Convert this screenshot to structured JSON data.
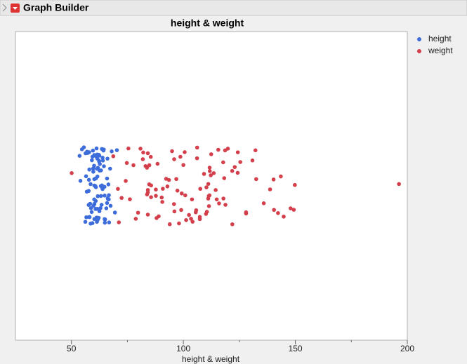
{
  "header": {
    "title": "Graph Builder"
  },
  "chart_data": {
    "type": "jitter",
    "title": "height & weight",
    "x_label": "height & weight",
    "xlim": [
      25,
      200
    ],
    "xticks": [
      50,
      100,
      150,
      200
    ],
    "xminor_ticks": [
      75,
      125,
      175
    ],
    "grid": false,
    "legend": "right",
    "series": [
      {
        "name": "height",
        "color": "#3d6cdb",
        "values": [
          60,
          62,
          58,
          64,
          66,
          61,
          63,
          57,
          59,
          65,
          67,
          62,
          60,
          64,
          56,
          58,
          61,
          63,
          65,
          59,
          62,
          66,
          60,
          57,
          64,
          68,
          61,
          63,
          59,
          62,
          55,
          60,
          65,
          58,
          63,
          61,
          67,
          64,
          62,
          59,
          56,
          60,
          66,
          63,
          58,
          61,
          64,
          62,
          57,
          65,
          60,
          63,
          59,
          68,
          62,
          61,
          64,
          58,
          66,
          60,
          54,
          63,
          61,
          59,
          65,
          62,
          57,
          60,
          64,
          67,
          63,
          58,
          61,
          62,
          69,
          60,
          65,
          59,
          63,
          56,
          61,
          64,
          62,
          58,
          66,
          60,
          63,
          57,
          65,
          61,
          62,
          59,
          64,
          60,
          70,
          53,
          67,
          63,
          58,
          62
        ]
      },
      {
        "name": "weight",
        "color": "#d3404c",
        "values": [
          51,
          72,
          75,
          78,
          80,
          82,
          84,
          84,
          84,
          84,
          84,
          84,
          85,
          86,
          88,
          90,
          92,
          94,
          95,
          96,
          98,
          100,
          100,
          102,
          104,
          105,
          106,
          108,
          110,
          110,
          112,
          112,
          112,
          112,
          112,
          112,
          114,
          115,
          116,
          118,
          120,
          122,
          125,
          128,
          128,
          130,
          133,
          135,
          140,
          140,
          142,
          145,
          148,
          150,
          150,
          196,
          70,
          74,
          76,
          79,
          83,
          87,
          89,
          91,
          93,
          97,
          99,
          101,
          103,
          107,
          109,
          111,
          113,
          117,
          119,
          121,
          124,
          126,
          132,
          138,
          144,
          68,
          73,
          77,
          81,
          85,
          88,
          92,
          95,
          99,
          102,
          105,
          108,
          110,
          115,
          118,
          105,
          95,
          90,
          100,
          84,
          112,
          112,
          84,
          122,
          118,
          106,
          96,
          88,
          78
        ]
      }
    ]
  }
}
